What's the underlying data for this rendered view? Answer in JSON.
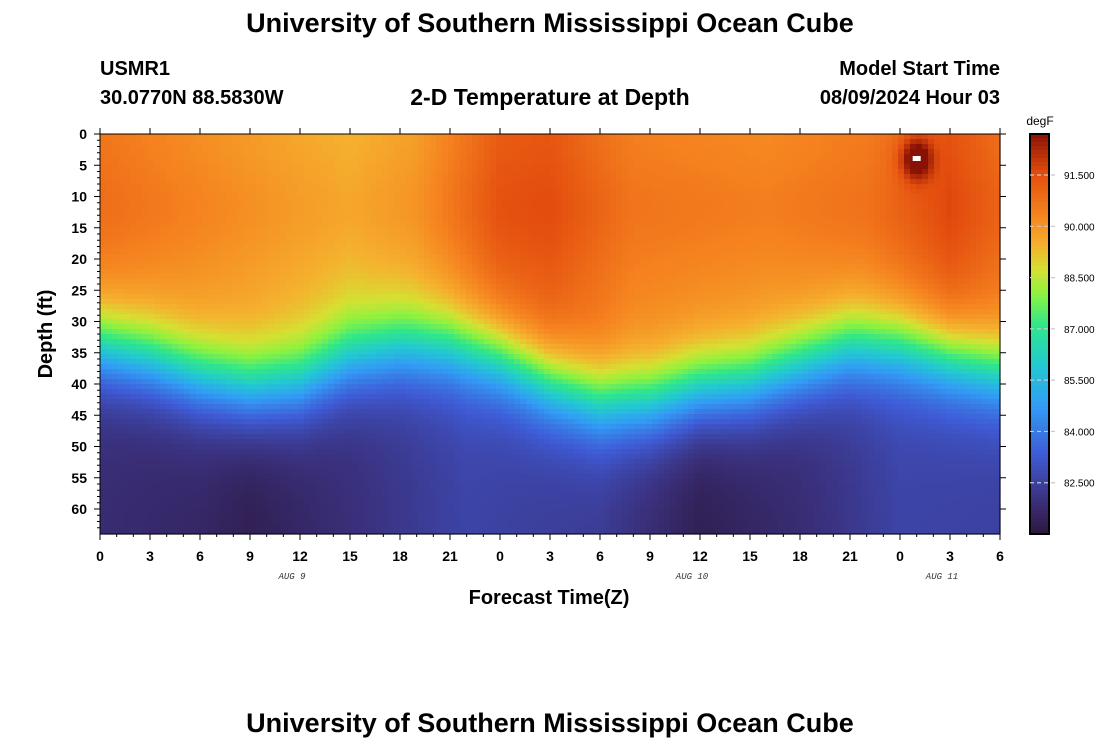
{
  "page": {
    "title": "University of Southern Mississippi Ocean Cube",
    "title_bottom": "University of Southern Mississippi Ocean Cube"
  },
  "header": {
    "station_id": "USMR1",
    "coordinates": "30.0770N  88.5830W",
    "subtitle": "2-D Temperature at Depth",
    "model_start_label": "Model Start Time",
    "model_start_value": "08/09/2024 Hour 03"
  },
  "chart_data": {
    "type": "heatmap",
    "title": "2-D Temperature at Depth",
    "xlabel": "Forecast Time(Z)",
    "ylabel": "Depth (ft)",
    "x_tick_labels": [
      "0",
      "3",
      "6",
      "9",
      "12",
      "15",
      "18",
      "21",
      "0",
      "3",
      "6",
      "9",
      "12",
      "15",
      "18",
      "21",
      "0",
      "3",
      "6"
    ],
    "x_range_hours": [
      0,
      54
    ],
    "date_labels": [
      {
        "label": "AUG 9",
        "at_hour": 12
      },
      {
        "label": "AUG 10",
        "at_hour": 36
      },
      {
        "label": "AUG 11",
        "at_hour": 51
      }
    ],
    "y_tick_labels": [
      "0",
      "5",
      "10",
      "15",
      "20",
      "25",
      "30",
      "35",
      "40",
      "45",
      "50",
      "55",
      "60"
    ],
    "y_tick_values": [
      0,
      5,
      10,
      15,
      20,
      25,
      30,
      35,
      40,
      45,
      50,
      55,
      60
    ],
    "y_range": [
      0,
      64
    ],
    "colorbar": {
      "unit": "degF",
      "tick_labels": [
        "91.500",
        "90.000",
        "88.500",
        "87.000",
        "85.500",
        "84.000",
        "82.500"
      ],
      "tick_values": [
        91.5,
        90.0,
        88.5,
        87.0,
        85.5,
        84.0,
        82.5
      ],
      "range": [
        81.0,
        92.7
      ]
    },
    "thermocline_depth_ft": [
      {
        "hour": 0,
        "depth": 27
      },
      {
        "hour": 3,
        "depth": 29
      },
      {
        "hour": 6,
        "depth": 32
      },
      {
        "hour": 9,
        "depth": 34
      },
      {
        "hour": 12,
        "depth": 33
      },
      {
        "hour": 15,
        "depth": 29
      },
      {
        "hour": 18,
        "depth": 27
      },
      {
        "hour": 21,
        "depth": 27
      },
      {
        "hour": 24,
        "depth": 29
      },
      {
        "hour": 27,
        "depth": 33
      },
      {
        "hour": 30,
        "depth": 36
      },
      {
        "hour": 33,
        "depth": 36
      },
      {
        "hour": 36,
        "depth": 34
      },
      {
        "hour": 39,
        "depth": 33
      },
      {
        "hour": 42,
        "depth": 30
      },
      {
        "hour": 45,
        "depth": 27
      },
      {
        "hour": 48,
        "depth": 27
      },
      {
        "hour": 51,
        "depth": 29
      },
      {
        "hour": 54,
        "depth": 31
      }
    ],
    "surface_temperature_degF": [
      {
        "hour": 0,
        "temp": 90.6
      },
      {
        "hour": 6,
        "temp": 90.1
      },
      {
        "hour": 12,
        "temp": 89.6
      },
      {
        "hour": 15,
        "temp": 89.4
      },
      {
        "hour": 19,
        "temp": 89.8
      },
      {
        "hour": 24,
        "temp": 91.2
      },
      {
        "hour": 27,
        "temp": 91.3
      },
      {
        "hour": 32,
        "temp": 90.4
      },
      {
        "hour": 40,
        "temp": 90.2
      },
      {
        "hour": 46,
        "temp": 90.5
      },
      {
        "hour": 51,
        "temp": 91.4
      },
      {
        "hour": 54,
        "temp": 90.8
      }
    ],
    "deep_temperature_degF": [
      {
        "hour": 0,
        "temp": 81.8
      },
      {
        "hour": 6,
        "temp": 81.6
      },
      {
        "hour": 9,
        "temp": 81.3
      },
      {
        "hour": 15,
        "temp": 81.9
      },
      {
        "hour": 22,
        "temp": 82.6
      },
      {
        "hour": 30,
        "temp": 82.3
      },
      {
        "hour": 36,
        "temp": 81.3
      },
      {
        "hour": 42,
        "temp": 81.8
      },
      {
        "hour": 48,
        "temp": 82.6
      },
      {
        "hour": 54,
        "temp": 82.5
      }
    ],
    "anomaly": {
      "hour": 49,
      "depth": 4,
      "note": "max-temperature cell"
    }
  }
}
